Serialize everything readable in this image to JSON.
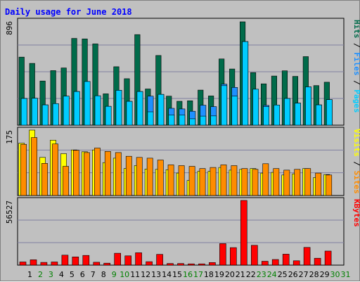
{
  "chart_data": {
    "type": "bar",
    "title": "Daily usage for June 2018",
    "x": [
      "1",
      "2",
      "3",
      "4",
      "5",
      "6",
      "7",
      "8",
      "9",
      "10",
      "11",
      "12",
      "13",
      "14",
      "15",
      "16",
      "17",
      "18",
      "19",
      "20",
      "21",
      "22",
      "23",
      "24",
      "25",
      "26",
      "27",
      "28",
      "29",
      "30",
      "31"
    ],
    "weekend_days": [
      2,
      3,
      9,
      10,
      16,
      17,
      23,
      24,
      30,
      31
    ],
    "colors": {
      "hits": "#006b4a",
      "files": "#1e90ff",
      "pages": "#00ccff",
      "visits": "#ffff00",
      "sites": "#ff8c00",
      "kbytes": "#ff0000",
      "title": "#0000ff",
      "weekday_label": "#000000",
      "weekend_label": "#008000",
      "panel_bg": "#c0c0c0",
      "grid": "#8080a0"
    },
    "panels": [
      {
        "max_label": "896",
        "ymax": 896,
        "right_labels": [
          {
            "text": "Pages",
            "color": "#00ccff"
          },
          {
            "text": " / ",
            "color": "#000000"
          },
          {
            "text": "Files",
            "color": "#1e90ff"
          },
          {
            "text": " / ",
            "color": "#000000"
          },
          {
            "text": "Hits",
            "color": "#006b4a"
          }
        ],
        "series": [
          {
            "name": "Hits",
            "key": "hits",
            "values": [
              586,
              532,
              380,
              470,
              493,
              747,
              743,
              700,
              270,
              503,
              400,
              780,
              312,
              600,
              250,
              206,
              210,
              302,
              252,
              570,
              484,
              890,
              453,
              356,
              423,
              468,
              420,
              590,
              341,
              370
            ]
          },
          {
            "name": "Files",
            "key": "files",
            "values": [
              230,
              232,
              175,
              186,
              250,
              290,
              376,
              253,
              162,
              300,
              205,
              290,
              250,
              265,
              145,
              140,
              120,
              172,
              160,
              353,
              325,
              720,
              310,
              170,
              174,
              230,
              190,
              330,
              175,
              220
            ]
          },
          {
            "name": "Pages",
            "key": "pages",
            "values": [
              230,
              232,
              175,
              186,
              250,
              290,
              376,
              253,
              162,
              300,
              205,
              290,
              115,
              265,
              88,
              88,
              55,
              78,
              80,
              340,
              250,
              720,
              310,
              160,
              174,
              230,
              190,
              330,
              175,
              220
            ]
          }
        ]
      },
      {
        "max_label": "175",
        "ymax": 175,
        "right_labels": [
          {
            "text": "Sites",
            "color": "#ff8c00"
          },
          {
            "text": " / ",
            "color": "#000000"
          },
          {
            "text": "Visits",
            "color": "#ffff00"
          }
        ],
        "series": [
          {
            "name": "Visits",
            "key": "visits",
            "values": [
              140,
              175,
              102,
              148,
              112,
              122,
              117,
              122,
              88,
              100,
              72,
              80,
              71,
              70,
              69,
              60,
              40,
              65,
              65,
              75,
              68,
              70,
              72,
              60,
              62,
              55,
              58,
              72,
              48,
              56
            ]
          },
          {
            "name": "Sites",
            "key": "sites",
            "values": [
              137,
              155,
              86,
              138,
              78,
              121,
              115,
              127,
              118,
              115,
              105,
              102,
              100,
              95,
              82,
              80,
              78,
              72,
              75,
              82,
              80,
              72,
              70,
              85,
              72,
              68,
              70,
              72,
              60,
              55
            ]
          }
        ]
      },
      {
        "max_label": "56527",
        "ymax": 56527,
        "right_labels": [
          {
            "text": "KBytes",
            "color": "#ff0000"
          }
        ],
        "series": [
          {
            "name": "KBytes",
            "key": "kbytes",
            "values": [
              2750,
              4700,
              2400,
              2750,
              8700,
              7200,
              8500,
              2500,
              1700,
              10400,
              8100,
              10800,
              3000,
              9400,
              1400,
              1400,
              1100,
              1100,
              2250,
              18800,
              15300,
              56527,
              17300,
              3400,
              4900,
              9600,
              3800,
              15500,
              6000,
              12300
            ]
          }
        ]
      }
    ]
  }
}
